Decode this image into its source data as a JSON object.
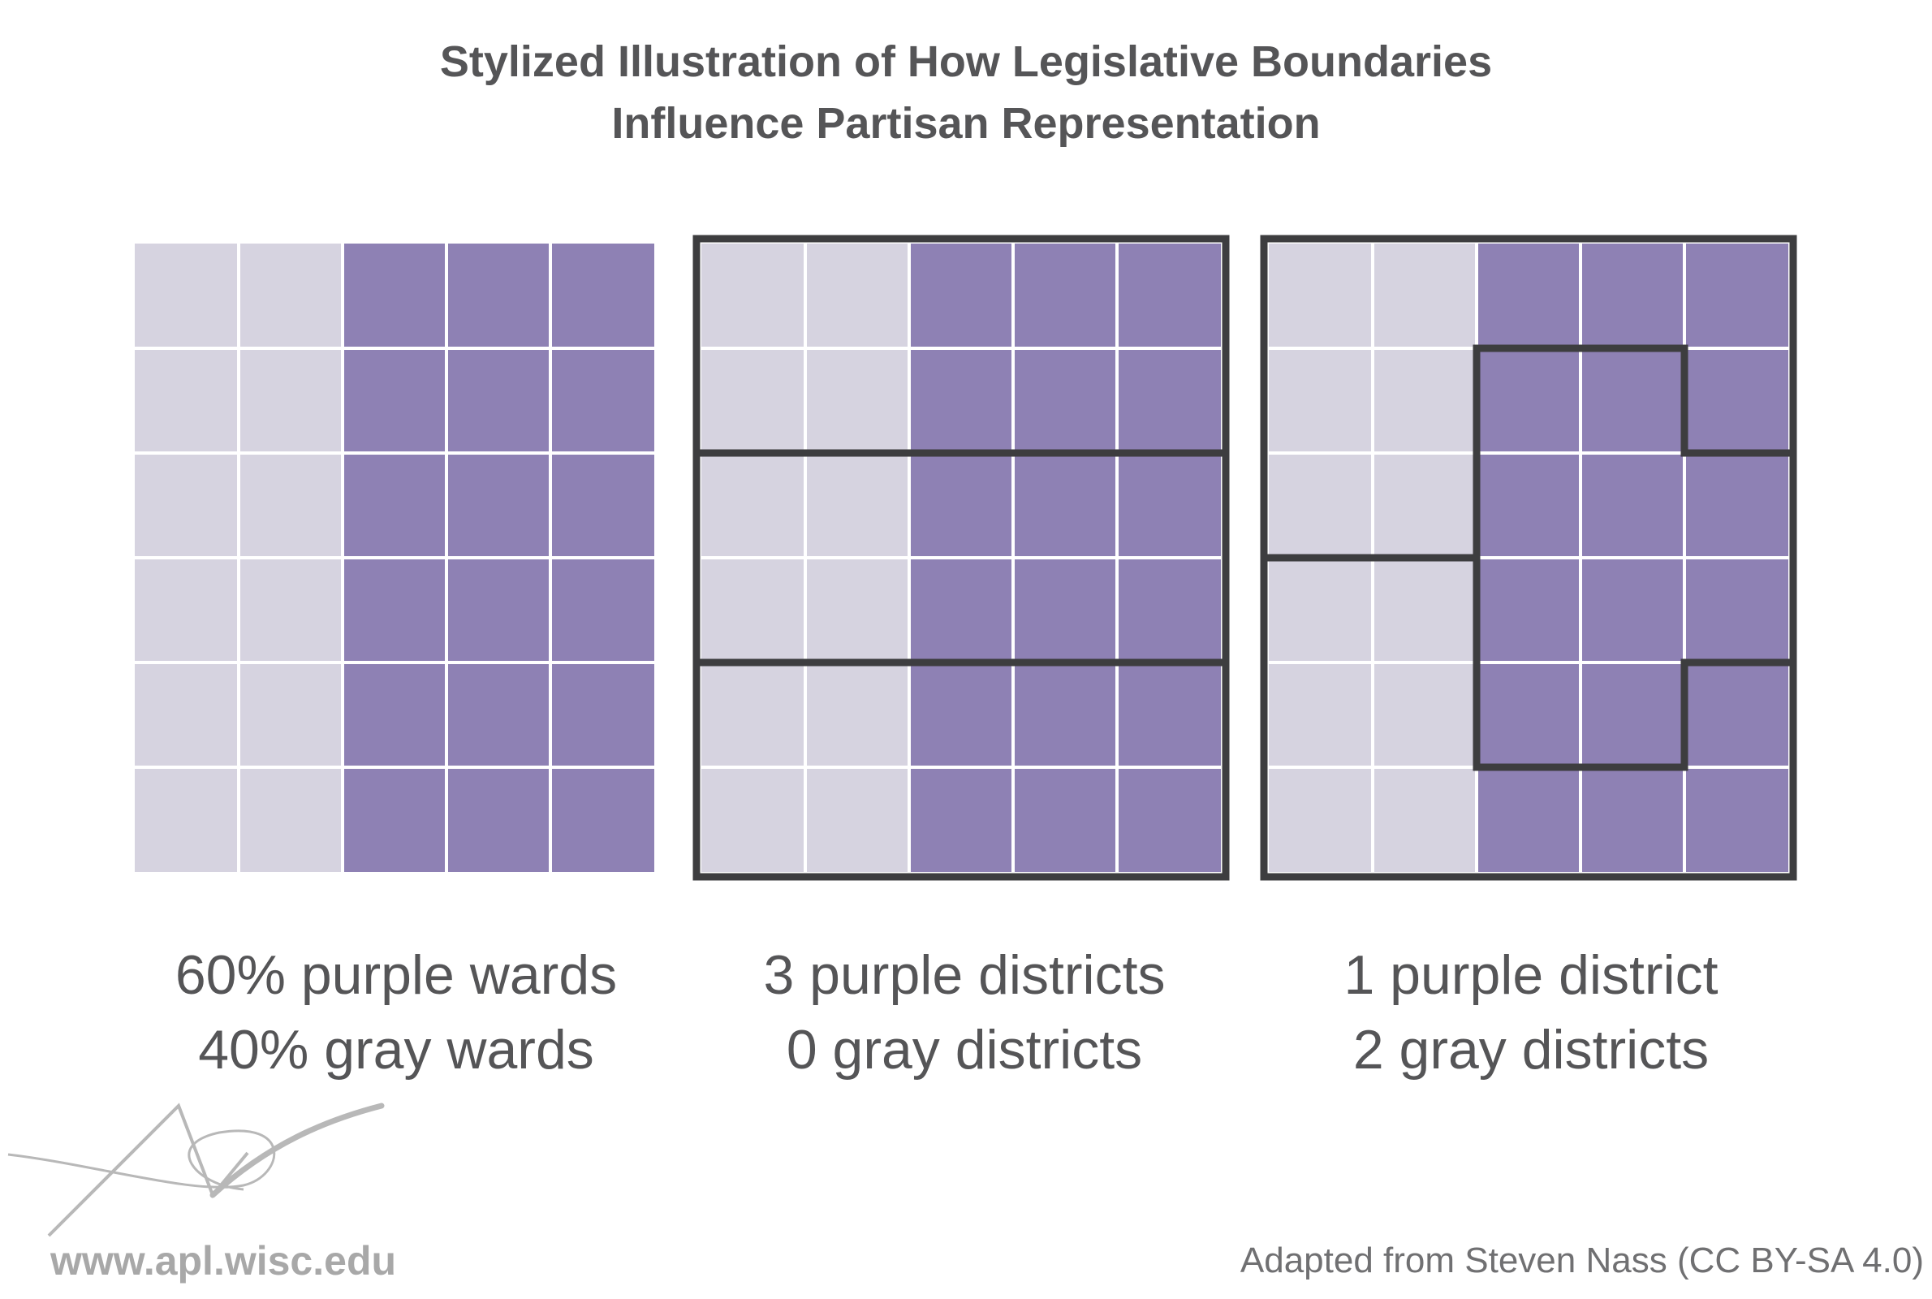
{
  "title": {
    "line1": "Stylized Illustration of How Legislative Boundaries",
    "line2": "Influence Partisan Representation"
  },
  "colors": {
    "gray_ward": "#d6d3e0",
    "purple_ward": "#8e81b4",
    "boundary": "#3d3d3f",
    "text": "#555557"
  },
  "grid": {
    "rows": 6,
    "cols": 5,
    "wards": [
      [
        "gray",
        "gray",
        "purple",
        "purple",
        "purple"
      ],
      [
        "gray",
        "gray",
        "purple",
        "purple",
        "purple"
      ],
      [
        "gray",
        "gray",
        "purple",
        "purple",
        "purple"
      ],
      [
        "gray",
        "gray",
        "purple",
        "purple",
        "purple"
      ],
      [
        "gray",
        "gray",
        "purple",
        "purple",
        "purple"
      ],
      [
        "gray",
        "gray",
        "purple",
        "purple",
        "purple"
      ]
    ]
  },
  "panels": [
    {
      "name": "wards",
      "caption_line1": "60% purple wards",
      "caption_line2": "40% gray wards",
      "districts": null
    },
    {
      "name": "horizontal-districts",
      "caption_line1": "3 purple districts",
      "caption_line2": "0 gray districts",
      "districts": [
        [
          0,
          0,
          0,
          0,
          0
        ],
        [
          0,
          0,
          0,
          0,
          0
        ],
        [
          1,
          1,
          1,
          1,
          1
        ],
        [
          1,
          1,
          1,
          1,
          1
        ],
        [
          2,
          2,
          2,
          2,
          2
        ],
        [
          2,
          2,
          2,
          2,
          2
        ]
      ]
    },
    {
      "name": "gerrymandered-districts",
      "caption_line1": "1 purple district",
      "caption_line2": "2 gray districts",
      "districts": [
        [
          0,
          0,
          0,
          0,
          0
        ],
        [
          0,
          0,
          1,
          1,
          0
        ],
        [
          0,
          0,
          1,
          1,
          1
        ],
        [
          2,
          2,
          1,
          1,
          1
        ],
        [
          2,
          2,
          1,
          1,
          2
        ],
        [
          2,
          2,
          2,
          2,
          2
        ]
      ]
    }
  ],
  "footer": {
    "credit": "Adapted from Steven Nass (CC BY-SA 4.0)",
    "logo_url": "www.apl.wisc.edu"
  }
}
